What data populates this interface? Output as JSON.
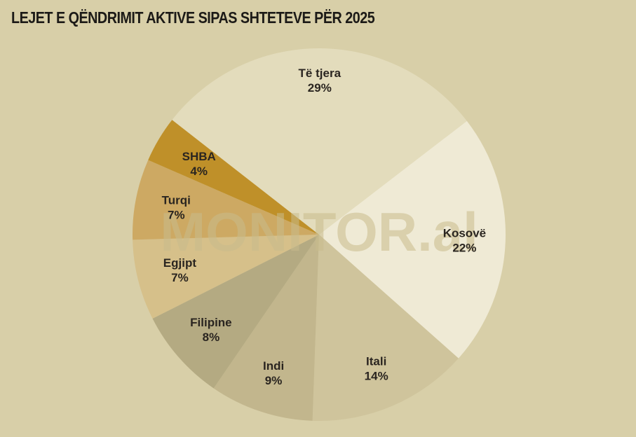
{
  "title": "LEJET E QËNDRIMIT AKTIVE SIPAS SHTETEVE PËR 2025",
  "watermark": "MONITOR.al",
  "chart_data": {
    "type": "pie",
    "title": "LEJET E QËNDRIMIT AKTIVE SIPAS SHTETEVE PËR 2025",
    "unit": "%",
    "slices": [
      {
        "label": "Kosovë",
        "value": 22,
        "display": "22%",
        "color": "#efead5"
      },
      {
        "label": "Itali",
        "value": 14,
        "display": "14%",
        "color": "#cfc49c"
      },
      {
        "label": "Indi",
        "value": 9,
        "display": "9%",
        "color": "#c2b68d"
      },
      {
        "label": "Filipine",
        "value": 8,
        "display": "8%",
        "color": "#b4aa82"
      },
      {
        "label": "Egjipt",
        "value": 7,
        "display": "7%",
        "color": "#d6c08a"
      },
      {
        "label": "Turqi",
        "value": 7,
        "display": "7%",
        "color": "#cda963"
      },
      {
        "label": "SHBA",
        "value": 4,
        "display": "4%",
        "color": "#bf9029"
      },
      {
        "label": "Të tjera",
        "value": 29,
        "display": "29%",
        "color": "#e3dcbc"
      }
    ]
  }
}
